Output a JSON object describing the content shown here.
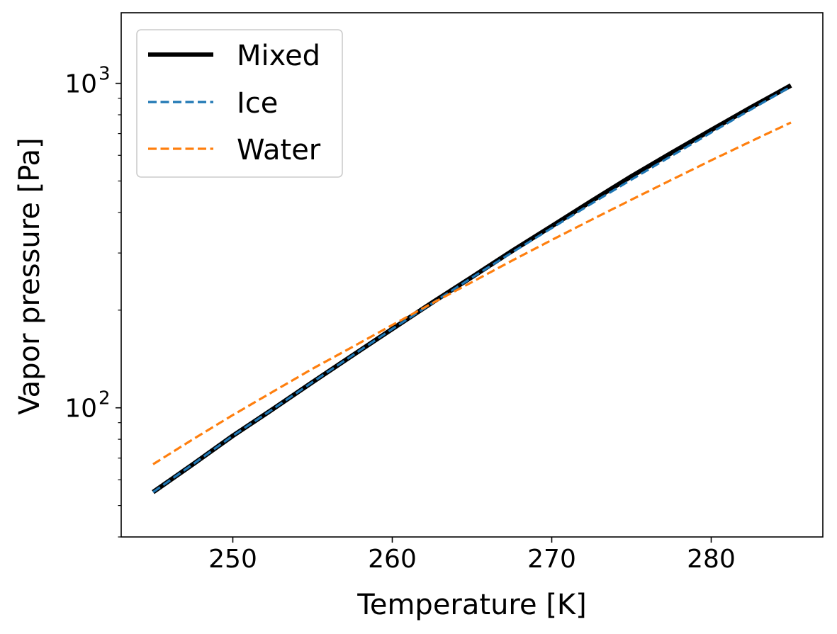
{
  "chart_data": {
    "type": "line",
    "title": "",
    "xlabel": "Temperature [K]",
    "ylabel": "Vapor pressure [Pa]",
    "xlim": [
      243.0,
      287.0
    ],
    "ylim": [
      40.0,
      1650.0
    ],
    "yscale": "log",
    "grid": false,
    "legend_position": "top-left",
    "x_ticks": [
      250,
      260,
      270,
      280
    ],
    "x_tick_labels": [
      "250",
      "260",
      "270",
      "280"
    ],
    "y_major_ticks": [
      100,
      1000
    ],
    "y_tick_labels": [
      {
        "base": "10",
        "exp": "2"
      },
      {
        "base": "10",
        "exp": "3"
      }
    ],
    "series": [
      {
        "name": "Mixed",
        "color": "#000000",
        "style": "solid",
        "x": [
          245,
          247.5,
          250,
          252.5,
          255,
          257.5,
          260,
          262.5,
          265,
          267.5,
          270,
          272.5,
          275,
          277.5,
          280,
          282.5,
          285
        ],
        "values": [
          55.0,
          67.0,
          82.0,
          99.0,
          120.0,
          145.0,
          175.0,
          211.0,
          253.0,
          304.0,
          363.0,
          434.0,
          517.0,
          610.0,
          718.0,
          843.0,
          985.0
        ]
      },
      {
        "name": "Ice",
        "color": "#1f77b4",
        "style": "dashed",
        "x": [
          245,
          247.5,
          250,
          252.5,
          255,
          257.5,
          260,
          262.5,
          265,
          267.5,
          270,
          272.5,
          275,
          277.5,
          280,
          282.5,
          285
        ],
        "values": [
          55.0,
          67.0,
          82.0,
          99.0,
          120.0,
          145.0,
          175.0,
          210.0,
          252.0,
          301.0,
          358.0,
          426.0,
          505.0,
          597.0,
          705.0,
          831.0,
          977.0
        ]
      },
      {
        "name": "Water",
        "color": "#ff7f0e",
        "style": "dashed",
        "x": [
          245,
          247.5,
          250,
          252.5,
          255,
          257.5,
          260,
          262.5,
          265,
          267.5,
          270,
          272.5,
          275,
          277.5,
          280,
          282.5,
          285
        ],
        "values": [
          67.0,
          80.0,
          95.0,
          112.0,
          132.0,
          154.0,
          180.0,
          210.0,
          244.0,
          284.0,
          329.0,
          380.0,
          438.0,
          504.0,
          579.0,
          663.0,
          757.0
        ]
      }
    ]
  }
}
